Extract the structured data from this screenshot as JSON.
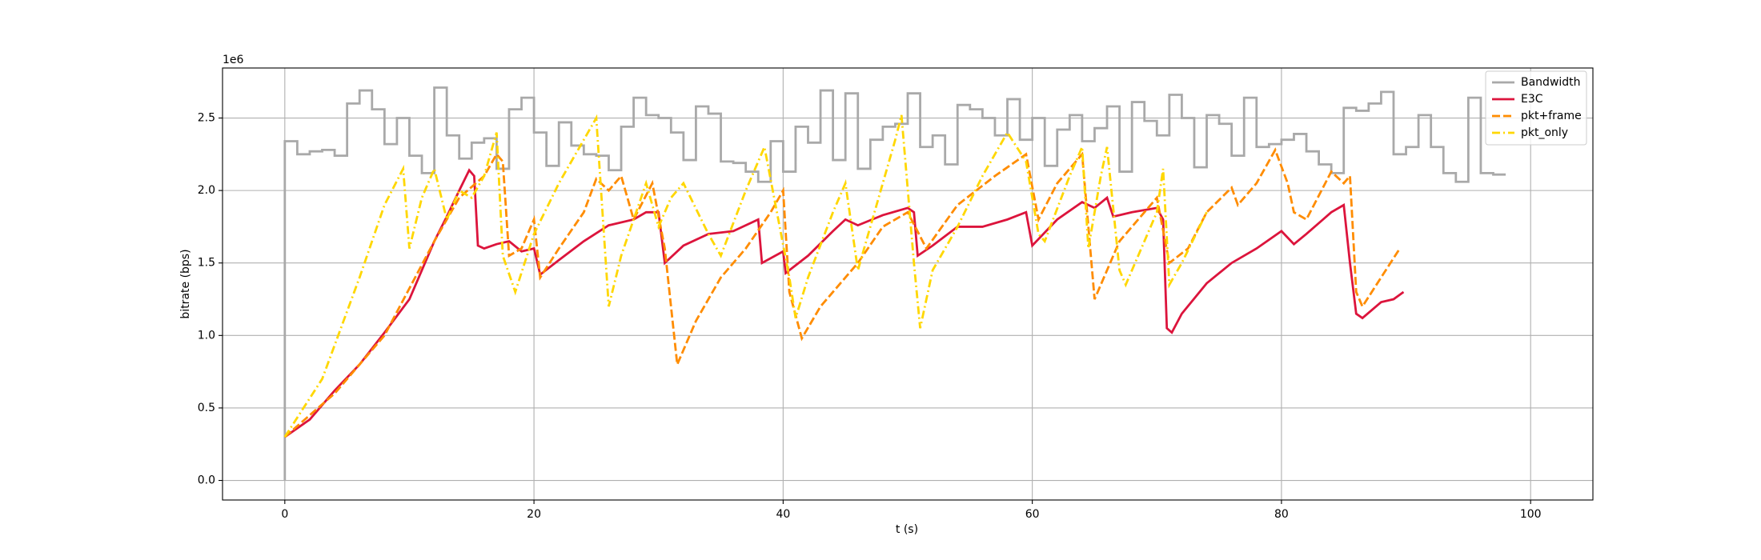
{
  "chart_data": {
    "type": "line",
    "xlabel": "t (s)",
    "ylabel": "bitrate (bps)",
    "y_offset_label": "1e6",
    "xlim": [
      -5,
      105
    ],
    "ylim": [
      -135000,
      2845000
    ],
    "xticks": [
      0,
      20,
      40,
      60,
      80,
      100
    ],
    "yticks": [
      {
        "value": 0,
        "label": "0.0"
      },
      {
        "value": 500000,
        "label": "0.5"
      },
      {
        "value": 1000000,
        "label": "1.0"
      },
      {
        "value": 1500000,
        "label": "1.5"
      },
      {
        "value": 2000000,
        "label": "2.0"
      },
      {
        "value": 2500000,
        "label": "2.5"
      }
    ],
    "grid": true,
    "legend": "upper right",
    "series": [
      {
        "name": "Bandwidth",
        "color": "#a9a9a9",
        "linestyle": "solid",
        "drawstyle": "steps-post",
        "x": [
          0,
          0,
          1,
          2,
          3,
          4,
          5,
          6,
          7,
          8,
          9,
          10,
          11,
          12,
          13,
          14,
          15,
          16,
          17,
          18,
          19,
          20,
          21,
          22,
          23,
          24,
          25,
          26,
          27,
          28,
          29,
          30,
          31,
          32,
          33,
          34,
          35,
          36,
          37,
          38,
          39,
          40,
          41,
          42,
          43,
          44,
          45,
          46,
          47,
          48,
          49,
          50,
          51,
          52,
          53,
          54,
          55,
          56,
          57,
          58,
          59,
          60,
          61,
          62,
          63,
          64,
          65,
          66,
          67,
          68,
          69,
          70,
          71,
          72,
          73,
          74,
          75,
          76,
          77,
          78,
          79,
          80,
          81,
          82,
          83,
          84,
          85,
          86,
          87,
          88,
          89,
          90,
          91,
          92,
          93,
          94,
          95,
          96,
          97,
          98
        ],
        "values": [
          0,
          2340000,
          2250000,
          2270000,
          2280000,
          2240000,
          2600000,
          2690000,
          2560000,
          2320000,
          2500000,
          2240000,
          2120000,
          2710000,
          2380000,
          2220000,
          2330000,
          2360000,
          2150000,
          2560000,
          2640000,
          2400000,
          2170000,
          2470000,
          2310000,
          2250000,
          2240000,
          2140000,
          2440000,
          2640000,
          2520000,
          2500000,
          2400000,
          2210000,
          2580000,
          2530000,
          2200000,
          2190000,
          2130000,
          2060000,
          2340000,
          2130000,
          2440000,
          2330000,
          2690000,
          2210000,
          2670000,
          2150000,
          2350000,
          2440000,
          2460000,
          2670000,
          2300000,
          2380000,
          2180000,
          2590000,
          2560000,
          2500000,
          2380000,
          2630000,
          2350000,
          2500000,
          2170000,
          2420000,
          2520000,
          2340000,
          2430000,
          2580000,
          2130000,
          2610000,
          2480000,
          2380000,
          2660000,
          2500000,
          2160000,
          2520000,
          2460000,
          2240000,
          2640000,
          2300000,
          2320000,
          2350000,
          2390000,
          2270000,
          2180000,
          2120000,
          2570000,
          2550000,
          2600000,
          2680000,
          2250000,
          2300000,
          2520000,
          2300000,
          2120000,
          2060000,
          2640000,
          2120000,
          2110000,
          2110000
        ]
      },
      {
        "name": "E3C",
        "color": "#dc143c",
        "linestyle": "solid",
        "x": [
          0,
          2,
          4,
          6,
          8,
          10,
          11,
          12,
          13,
          14,
          14.8,
          15.2,
          15.5,
          16,
          17,
          18,
          19,
          20,
          20.5,
          22,
          24,
          26,
          28,
          29,
          30,
          30.5,
          32,
          34,
          36,
          38,
          38.3,
          40,
          40.2,
          42,
          44,
          45,
          46,
          48,
          50,
          50.5,
          50.8,
          52,
          54,
          56,
          58,
          59.5,
          60,
          62,
          64,
          65,
          66,
          66.5,
          68,
          70,
          70.5,
          70.8,
          71.2,
          72,
          74,
          76,
          78,
          80,
          81,
          82,
          84,
          85,
          85.5,
          86,
          86.5,
          88,
          89,
          89.8
        ],
        "values": [
          300000,
          420000,
          620000,
          800000,
          1020000,
          1250000,
          1450000,
          1650000,
          1820000,
          2000000,
          2140000,
          2100000,
          1620000,
          1600000,
          1630000,
          1650000,
          1580000,
          1600000,
          1420000,
          1520000,
          1650000,
          1760000,
          1800000,
          1850000,
          1850000,
          1500000,
          1620000,
          1700000,
          1720000,
          1800000,
          1500000,
          1580000,
          1430000,
          1550000,
          1720000,
          1800000,
          1760000,
          1830000,
          1880000,
          1850000,
          1550000,
          1620000,
          1750000,
          1750000,
          1800000,
          1850000,
          1620000,
          1800000,
          1920000,
          1880000,
          1950000,
          1820000,
          1850000,
          1880000,
          1800000,
          1050000,
          1020000,
          1150000,
          1360000,
          1500000,
          1600000,
          1720000,
          1630000,
          1700000,
          1850000,
          1900000,
          1500000,
          1150000,
          1120000,
          1230000,
          1250000,
          1300000
        ]
      },
      {
        "name": "pkt+frame",
        "color": "#ff8c00",
        "linestyle": "dashed",
        "x": [
          0,
          4,
          8,
          12,
          14,
          16,
          17,
          17.5,
          18,
          19,
          20,
          20.5,
          22,
          24,
          25,
          26,
          27,
          28,
          29.5,
          30.5,
          31,
          31.5,
          33,
          35,
          37,
          39,
          40,
          40.5,
          41.5,
          43,
          46,
          48,
          50,
          51.5,
          54,
          57,
          59.5,
          60.5,
          62,
          64,
          64.5,
          65,
          67,
          70,
          71,
          72.5,
          74,
          76,
          76.5,
          78,
          79.5,
          80.5,
          81,
          82,
          84,
          85,
          85.5,
          86,
          86.5,
          88,
          89.5
        ],
        "values": [
          300000,
          600000,
          1000000,
          1650000,
          1950000,
          2100000,
          2250000,
          2200000,
          1550000,
          1600000,
          1800000,
          1400000,
          1600000,
          1850000,
          2080000,
          2000000,
          2100000,
          1800000,
          2050000,
          1600000,
          1200000,
          800000,
          1100000,
          1400000,
          1600000,
          1850000,
          2000000,
          1300000,
          980000,
          1200000,
          1500000,
          1750000,
          1850000,
          1600000,
          1900000,
          2100000,
          2250000,
          1800000,
          2050000,
          2250000,
          1750000,
          1250000,
          1650000,
          1950000,
          1500000,
          1600000,
          1850000,
          2020000,
          1900000,
          2050000,
          2280000,
          2050000,
          1850000,
          1800000,
          2130000,
          2050000,
          2100000,
          1300000,
          1200000,
          1400000,
          1600000
        ]
      },
      {
        "name": "pkt_only",
        "color": "#ffd700",
        "linestyle": "dashdot",
        "x": [
          0,
          3,
          6,
          8,
          9.5,
          10,
          11,
          12,
          13,
          14,
          15,
          16,
          17,
          17.5,
          18.5,
          20,
          22,
          24,
          25,
          26,
          27,
          29,
          30,
          31,
          32,
          34,
          35,
          37,
          38.5,
          39.5,
          40.5,
          41,
          42,
          44,
          45,
          46,
          47,
          49,
          49.5,
          50.5,
          51,
          52,
          54,
          56,
          58,
          59.5,
          60.5,
          61,
          63,
          64,
          64.5,
          65.5,
          66,
          67,
          67.5,
          70,
          70.5,
          71,
          72,
          74
        ],
        "values": [
          300000,
          700000,
          1400000,
          1900000,
          2150000,
          1600000,
          1950000,
          2150000,
          1800000,
          2000000,
          1950000,
          2100000,
          2400000,
          1550000,
          1300000,
          1700000,
          2050000,
          2350000,
          2500000,
          1200000,
          1550000,
          2050000,
          1750000,
          1950000,
          2050000,
          1700000,
          1550000,
          2000000,
          2300000,
          1850000,
          1400000,
          1120000,
          1400000,
          1850000,
          2050000,
          1450000,
          1750000,
          2350000,
          2520000,
          1500000,
          1050000,
          1450000,
          1750000,
          2100000,
          2400000,
          2200000,
          1700000,
          1650000,
          2100000,
          2300000,
          1600000,
          2100000,
          2300000,
          1450000,
          1350000,
          1850000,
          2150000,
          1350000,
          1500000,
          1850000
        ]
      }
    ]
  }
}
